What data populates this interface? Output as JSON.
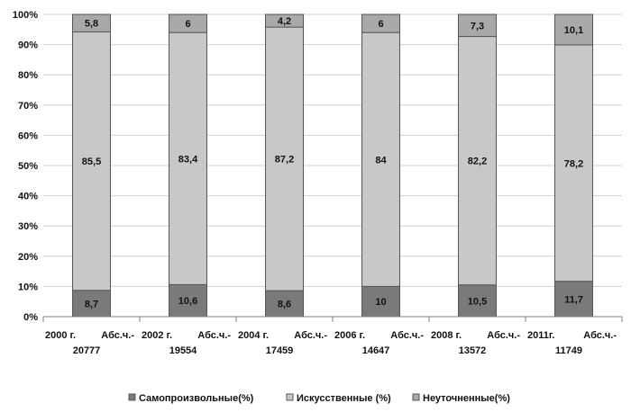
{
  "chart_data": {
    "type": "bar",
    "stacked": true,
    "title": "",
    "xlabel": "",
    "ylabel": "",
    "ylim": [
      0,
      100
    ],
    "y_ticks": [
      "0%",
      "10%",
      "20%",
      "30%",
      "40%",
      "50%",
      "60%",
      "70%",
      "80%",
      "90%",
      "100%"
    ],
    "categories": [
      {
        "year": "2000 г.",
        "abs": "Абс.ч.- 20777"
      },
      {
        "year": "2002 г.",
        "abs": "Абс.ч.- 19554"
      },
      {
        "year": "2004 г.",
        "abs": "Абс.ч.- 17459"
      },
      {
        "year": "2006 г.",
        "abs": "Абс.ч.- 14647"
      },
      {
        "year": "2008 г.",
        "abs": "Абс.ч.- 13572"
      },
      {
        "year": "2011г.",
        "abs": "Абс.ч.- 11749"
      }
    ],
    "series": [
      {
        "name": "Самопроизвольные(%)",
        "color": "#7a7a7a",
        "values": [
          8.7,
          10.6,
          8.6,
          10,
          10.5,
          11.7
        ],
        "labels": [
          "8,7",
          "10,6",
          "8,6",
          "10",
          "10,5",
          "11,7"
        ]
      },
      {
        "name": "Искусственные (%)",
        "color": "#c8c8c8",
        "values": [
          85.5,
          83.4,
          87.2,
          84,
          82.2,
          78.2
        ],
        "labels": [
          "85,5",
          "83,4",
          "87,2",
          "84",
          "82,2",
          "78,2"
        ]
      },
      {
        "name": "Неуточненные(%)",
        "color": "#a9a9a9",
        "values": [
          5.8,
          6,
          4.2,
          6,
          7.3,
          10.1
        ],
        "labels": [
          "5,8",
          "6",
          "4,2",
          "6",
          "7,3",
          "10,1"
        ]
      }
    ],
    "grid": true,
    "legend_position": "bottom"
  }
}
